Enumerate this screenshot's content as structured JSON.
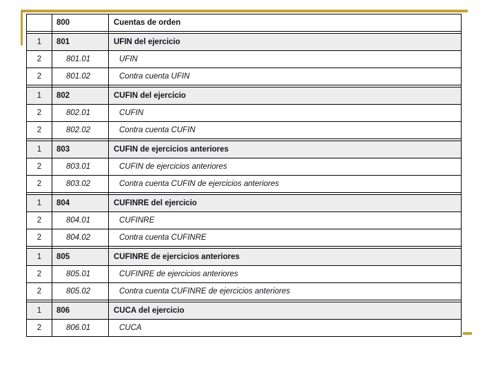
{
  "slide": {
    "background": "#ffffff",
    "accent_gold": "#C1A236",
    "border_color": "#000000",
    "band_fill": "#ededed"
  },
  "table": {
    "columns": [
      "level",
      "code",
      "name"
    ],
    "rows": [
      {
        "level": "",
        "code": "800",
        "name": "Cuentas de orden",
        "type": "header"
      },
      {
        "level": "1",
        "code": "801",
        "name": "UFIN del ejercicio",
        "type": "group"
      },
      {
        "level": "2",
        "code": "801.01",
        "name": "UFIN",
        "type": "detail"
      },
      {
        "level": "2",
        "code": "801.02",
        "name": "Contra cuenta UFIN",
        "type": "detail"
      },
      {
        "level": "1",
        "code": "802",
        "name": "CUFIN del ejercicio",
        "type": "group"
      },
      {
        "level": "2",
        "code": "802.01",
        "name": "CUFIN",
        "type": "detail"
      },
      {
        "level": "2",
        "code": "802.02",
        "name": "Contra cuenta CUFIN",
        "type": "detail"
      },
      {
        "level": "1",
        "code": "803",
        "name": "CUFIN de ejercicios anteriores",
        "type": "group"
      },
      {
        "level": "2",
        "code": "803.01",
        "name": "CUFIN de ejercicios anteriores",
        "type": "detail"
      },
      {
        "level": "2",
        "code": "803.02",
        "name": "Contra cuenta CUFIN de ejercicios anteriores",
        "type": "detail"
      },
      {
        "level": "1",
        "code": "804",
        "name": "CUFINRE del ejercicio",
        "type": "group"
      },
      {
        "level": "2",
        "code": "804.01",
        "name": "CUFINRE",
        "type": "detail"
      },
      {
        "level": "2",
        "code": "804.02",
        "name": "Contra cuenta CUFINRE",
        "type": "detail"
      },
      {
        "level": "1",
        "code": "805",
        "name": "CUFINRE de ejercicios anteriores",
        "type": "group"
      },
      {
        "level": "2",
        "code": "805.01",
        "name": "CUFINRE de ejercicios anteriores",
        "type": "detail"
      },
      {
        "level": "2",
        "code": "805.02",
        "name": "Contra cuenta CUFINRE de ejercicios anteriores",
        "type": "detail"
      },
      {
        "level": "1",
        "code": "806",
        "name": "CUCA del ejercicio",
        "type": "group"
      },
      {
        "level": "2",
        "code": "806.01",
        "name": "CUCA",
        "type": "detail"
      }
    ]
  }
}
